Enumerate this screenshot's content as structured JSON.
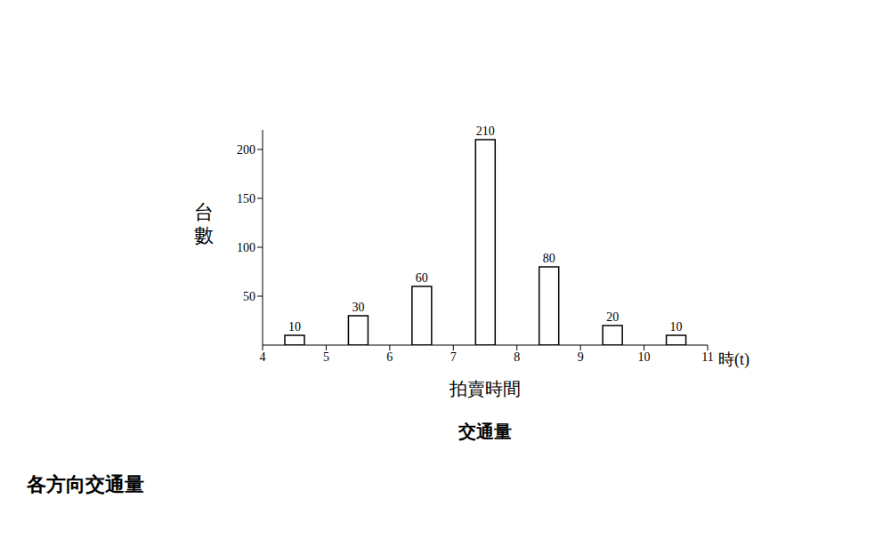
{
  "chart_data": {
    "type": "bar",
    "title": "交通量",
    "xlabel": "拍賣時間",
    "ylabel": "台數",
    "annotations": [
      "時(t)",
      "各方向交通量"
    ],
    "x": [
      4.5,
      5.5,
      6.5,
      7.5,
      8.5,
      9.5,
      10.5
    ],
    "values": [
      10,
      30,
      60,
      210,
      80,
      20,
      10
    ],
    "color": "#ffffff",
    "xlim": [
      4,
      11
    ],
    "xticks": [
      4,
      5,
      6,
      7,
      8,
      9,
      10,
      11
    ],
    "ylim": [
      0,
      220
    ],
    "yticks": [
      50,
      100,
      150,
      200
    ],
    "grid": false,
    "data_labels": true
  }
}
